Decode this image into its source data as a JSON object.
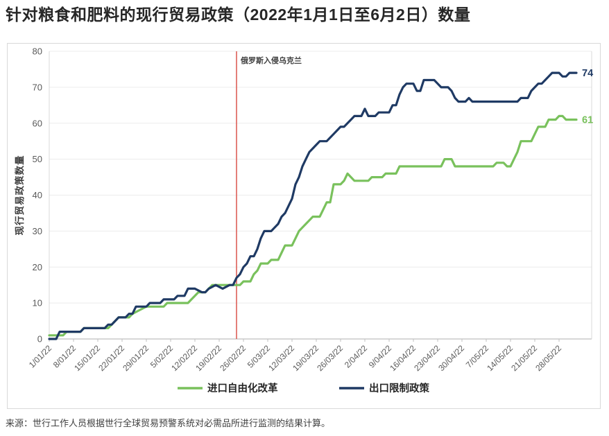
{
  "title": "针对粮食和肥料的现行贸易政策（2022年1月1日至6月2日）数量",
  "source": "来源：世行工作人员根据世行全球贸易预警系统对必需品所进行监测的结果计算。",
  "colors": {
    "import_series": "#79c15c",
    "export_series": "#1f3a64",
    "event_line": "#dd5f58",
    "grid": "#ececec",
    "axis": "#bfbfbf",
    "tick_text": "#595959",
    "dark_text": "#3f3f3f"
  },
  "chart_data": {
    "type": "line",
    "title": "针对粮食和肥料的现行贸易政策（2022年1月1日至6月2日）数量",
    "xlabel": "",
    "ylabel": "现行贸易政策数量",
    "ylim": [
      0,
      80
    ],
    "y_ticks": [
      0,
      10,
      20,
      30,
      40,
      50,
      60,
      70,
      80
    ],
    "grid": "horizontal",
    "legend_position": "bottom",
    "x_unit": "days since 1 Jan 2022",
    "x_range_days": [
      0,
      152
    ],
    "x_tick_days": [
      0,
      7,
      14,
      21,
      28,
      35,
      42,
      49,
      56,
      63,
      70,
      77,
      84,
      91,
      98,
      105,
      112,
      119,
      126,
      133,
      140,
      147
    ],
    "x_tick_labels": [
      "1/01/22",
      "8/01/22",
      "15/01/22",
      "22/01/22",
      "29/01/22",
      "5/02/22",
      "12/02/22",
      "19/02/22",
      "26/02/22",
      "5/03/22",
      "12/03/22",
      "19/03/22",
      "26/03/22",
      "2/04/22",
      "9/04/22",
      "16/04/22",
      "23/04/22",
      "30/04/22",
      "7/05/22",
      "14/05/22",
      "21/05/22",
      "28/05/22"
    ],
    "annotation": {
      "text": "俄罗斯入侵乌克兰",
      "x_day": 54
    },
    "series": [
      {
        "name": "进口自由化改革",
        "color": "#79c15c",
        "end_label": "61",
        "points": [
          [
            0,
            1
          ],
          [
            4,
            1
          ],
          [
            5,
            2
          ],
          [
            9,
            2
          ],
          [
            10,
            3
          ],
          [
            17,
            3
          ],
          [
            18,
            4
          ],
          [
            19,
            5
          ],
          [
            20,
            6
          ],
          [
            23,
            6
          ],
          [
            24,
            7
          ],
          [
            26,
            8
          ],
          [
            28,
            9
          ],
          [
            33,
            9
          ],
          [
            34,
            10
          ],
          [
            40,
            10
          ],
          [
            41,
            11
          ],
          [
            42,
            12
          ],
          [
            43,
            13
          ],
          [
            45,
            13
          ],
          [
            46,
            14
          ],
          [
            47,
            15
          ],
          [
            55,
            15
          ],
          [
            56,
            16
          ],
          [
            58,
            16
          ],
          [
            59,
            18
          ],
          [
            60,
            19
          ],
          [
            61,
            21
          ],
          [
            63,
            21
          ],
          [
            64,
            22
          ],
          [
            66,
            22
          ],
          [
            67,
            24
          ],
          [
            68,
            26
          ],
          [
            70,
            26
          ],
          [
            71,
            28
          ],
          [
            72,
            30
          ],
          [
            73,
            31
          ],
          [
            74,
            32
          ],
          [
            75,
            33
          ],
          [
            76,
            34
          ],
          [
            78,
            34
          ],
          [
            79,
            36
          ],
          [
            80,
            38
          ],
          [
            81,
            38
          ],
          [
            82,
            43
          ],
          [
            84,
            43
          ],
          [
            85,
            44
          ],
          [
            86,
            46
          ],
          [
            87,
            45
          ],
          [
            88,
            44
          ],
          [
            92,
            44
          ],
          [
            93,
            45
          ],
          [
            96,
            45
          ],
          [
            97,
            46
          ],
          [
            100,
            46
          ],
          [
            101,
            48
          ],
          [
            113,
            48
          ],
          [
            114,
            50
          ],
          [
            116,
            50
          ],
          [
            117,
            48
          ],
          [
            128,
            48
          ],
          [
            129,
            49
          ],
          [
            131,
            49
          ],
          [
            132,
            48
          ],
          [
            133,
            48
          ],
          [
            134,
            50
          ],
          [
            135,
            52
          ],
          [
            136,
            55
          ],
          [
            139,
            55
          ],
          [
            140,
            57
          ],
          [
            141,
            59
          ],
          [
            143,
            59
          ],
          [
            144,
            61
          ],
          [
            146,
            61
          ],
          [
            147,
            62
          ],
          [
            148,
            62
          ],
          [
            149,
            61
          ],
          [
            152,
            61
          ]
        ]
      },
      {
        "name": "出口限制政策",
        "color": "#1f3a64",
        "end_label": "74",
        "points": [
          [
            0,
            0
          ],
          [
            2,
            0
          ],
          [
            3,
            2
          ],
          [
            9,
            2
          ],
          [
            10,
            3
          ],
          [
            16,
            3
          ],
          [
            17,
            4
          ],
          [
            18,
            4
          ],
          [
            19,
            5
          ],
          [
            20,
            6
          ],
          [
            22,
            6
          ],
          [
            23,
            7
          ],
          [
            24,
            7
          ],
          [
            25,
            9
          ],
          [
            28,
            9
          ],
          [
            29,
            10
          ],
          [
            32,
            10
          ],
          [
            33,
            11
          ],
          [
            36,
            11
          ],
          [
            37,
            12
          ],
          [
            39,
            12
          ],
          [
            40,
            14
          ],
          [
            42,
            14
          ],
          [
            44,
            13
          ],
          [
            45,
            13
          ],
          [
            46,
            14
          ],
          [
            48,
            15
          ],
          [
            50,
            14
          ],
          [
            52,
            15
          ],
          [
            53,
            15
          ],
          [
            54,
            17
          ],
          [
            55,
            18
          ],
          [
            56,
            20
          ],
          [
            57,
            21
          ],
          [
            58,
            23
          ],
          [
            59,
            23
          ],
          [
            60,
            25
          ],
          [
            61,
            28
          ],
          [
            62,
            30
          ],
          [
            64,
            30
          ],
          [
            65,
            31
          ],
          [
            66,
            32
          ],
          [
            67,
            34
          ],
          [
            68,
            35
          ],
          [
            69,
            37
          ],
          [
            70,
            39
          ],
          [
            71,
            43
          ],
          [
            72,
            45
          ],
          [
            73,
            48
          ],
          [
            74,
            50
          ],
          [
            75,
            52
          ],
          [
            76,
            53
          ],
          [
            77,
            54
          ],
          [
            78,
            55
          ],
          [
            80,
            55
          ],
          [
            81,
            56
          ],
          [
            82,
            57
          ],
          [
            83,
            58
          ],
          [
            84,
            59
          ],
          [
            85,
            59
          ],
          [
            86,
            60
          ],
          [
            87,
            61
          ],
          [
            88,
            62
          ],
          [
            90,
            62
          ],
          [
            91,
            64
          ],
          [
            92,
            62
          ],
          [
            94,
            62
          ],
          [
            95,
            63
          ],
          [
            98,
            63
          ],
          [
            99,
            65
          ],
          [
            100,
            65
          ],
          [
            101,
            68
          ],
          [
            102,
            70
          ],
          [
            103,
            71
          ],
          [
            105,
            71
          ],
          [
            106,
            69
          ],
          [
            107,
            69
          ],
          [
            108,
            72
          ],
          [
            111,
            72
          ],
          [
            112,
            71
          ],
          [
            113,
            70
          ],
          [
            115,
            70
          ],
          [
            116,
            69
          ],
          [
            117,
            67
          ],
          [
            118,
            66
          ],
          [
            120,
            66
          ],
          [
            121,
            67
          ],
          [
            122,
            66
          ],
          [
            135,
            66
          ],
          [
            136,
            67
          ],
          [
            138,
            67
          ],
          [
            139,
            69
          ],
          [
            140,
            70
          ],
          [
            141,
            71
          ],
          [
            142,
            71
          ],
          [
            143,
            72
          ],
          [
            144,
            73
          ],
          [
            145,
            74
          ],
          [
            147,
            74
          ],
          [
            148,
            73
          ],
          [
            149,
            73
          ],
          [
            150,
            74
          ],
          [
            152,
            74
          ]
        ]
      }
    ]
  }
}
